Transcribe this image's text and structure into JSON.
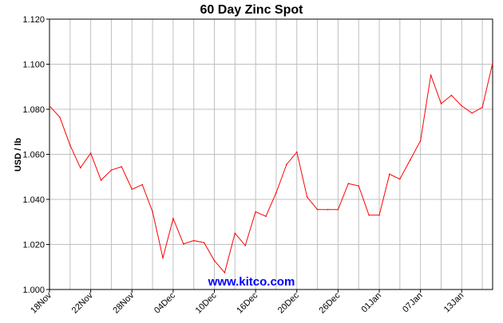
{
  "chart_data": {
    "type": "line",
    "title": "60 Day Zinc Spot",
    "ylabel": "USD / lb",
    "xlabel": "",
    "watermark": "www.kitco.com",
    "ylim": [
      1.0,
      1.12
    ],
    "y_ticks": [
      "1.000",
      "1.020",
      "1.040",
      "1.060",
      "1.080",
      "1.100",
      "1.120"
    ],
    "x_ticks": [
      {
        "label": "18Nov",
        "index": 0
      },
      {
        "label": "22Nov",
        "index": 4
      },
      {
        "label": "28Nov",
        "index": 8
      },
      {
        "label": "04Dec",
        "index": 12
      },
      {
        "label": "10Dec",
        "index": 16
      },
      {
        "label": "16Dec",
        "index": 20
      },
      {
        "label": "20Dec",
        "index": 24
      },
      {
        "label": "26Dec",
        "index": 28
      },
      {
        "label": "01Jan",
        "index": 32
      },
      {
        "label": "07Jan",
        "index": 36
      },
      {
        "label": "13Jan",
        "index": 40
      }
    ],
    "grid": true,
    "line_color": "#ff0000",
    "series": [
      {
        "values": [
          1.0815,
          1.0765,
          1.064,
          1.054,
          1.0605,
          1.0485,
          1.053,
          1.0545,
          1.0445,
          1.0465,
          1.0345,
          1.014,
          1.0315,
          1.0202,
          1.0217,
          1.0208,
          1.0128,
          1.0075,
          1.025,
          1.0195,
          1.0345,
          1.0325,
          1.043,
          1.0555,
          1.061,
          1.041,
          1.0355,
          1.0355,
          1.0355,
          1.047,
          1.046,
          1.033,
          1.033,
          1.0512,
          1.049,
          1.0575,
          1.066,
          1.0952,
          1.0825,
          1.0862,
          1.0815,
          1.0783,
          1.0808,
          1.1005
        ]
      }
    ]
  }
}
